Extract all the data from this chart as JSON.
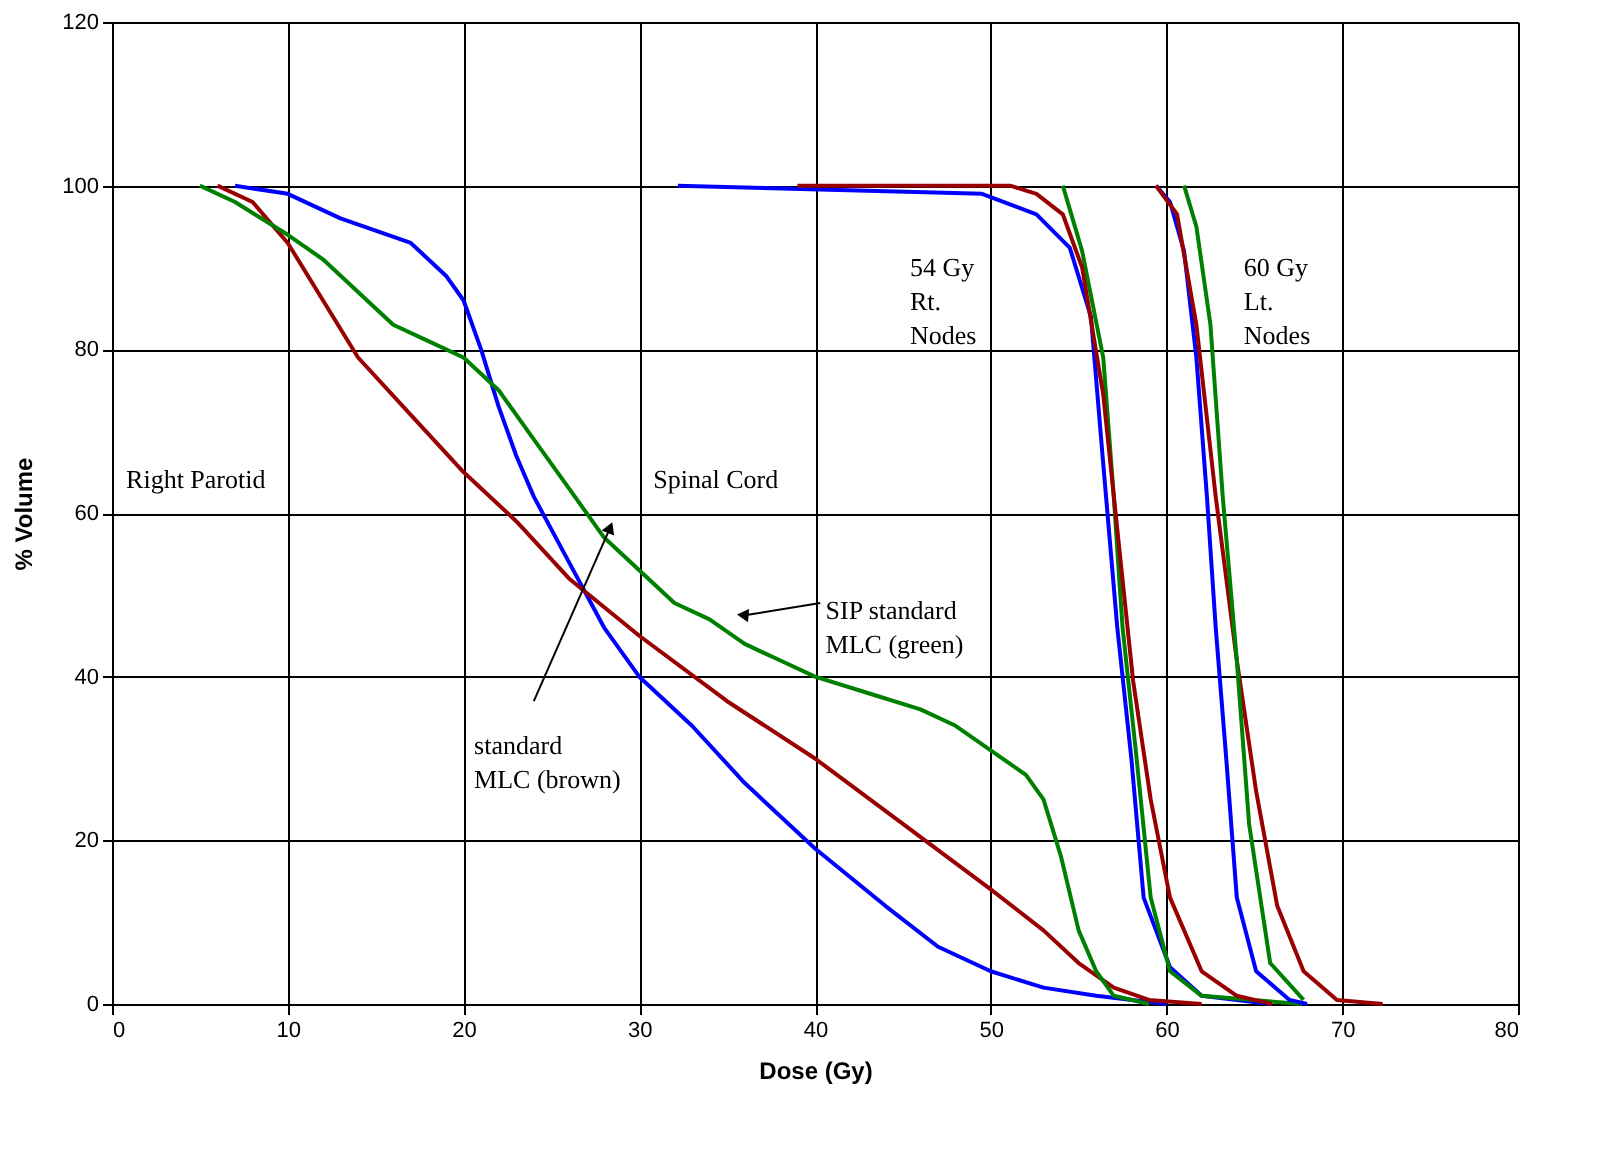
{
  "chart_data": {
    "type": "line",
    "xlabel": "Dose (Gy)",
    "ylabel": "% Volume",
    "xlim": [
      0,
      80
    ],
    "ylim": [
      0,
      120
    ],
    "xticks": [
      0,
      10,
      20,
      30,
      40,
      50,
      60,
      70,
      80
    ],
    "yticks": [
      0,
      20,
      40,
      60,
      80,
      100,
      120
    ],
    "grid": true,
    "marker": "none",
    "line_style": "solid",
    "annotations": [
      "Right Parotid",
      "Spinal Cord",
      "54 Gy Rt. Nodes",
      "60 Gy Lt. Nodes",
      "standard MLC (brown)",
      "SIP standard MLC (green)"
    ],
    "series": [
      {
        "color": "#0000ff",
        "x": [
          7,
          10,
          13,
          17,
          19,
          20,
          21,
          22,
          23,
          24,
          26,
          28,
          30,
          33,
          36,
          40,
          44,
          47,
          50,
          53,
          56,
          60
        ],
        "values": [
          100,
          99,
          96,
          93,
          89,
          86,
          80,
          73,
          67,
          62,
          54,
          46,
          40,
          34,
          27,
          19,
          12,
          7,
          4,
          2,
          1,
          0
        ]
      },
      {
        "color": "#990000",
        "x": [
          6,
          8,
          10,
          12,
          14,
          17,
          20,
          23,
          26,
          30,
          35,
          40,
          45,
          50,
          53,
          55,
          57,
          59,
          62
        ],
        "values": [
          100,
          98,
          93,
          86,
          79,
          72,
          65,
          59,
          52,
          45,
          37,
          30,
          22,
          14,
          9,
          5,
          2,
          0.5,
          0
        ]
      },
      {
        "color": "#008000",
        "x": [
          5,
          7,
          10,
          12,
          14,
          16,
          18,
          20,
          22,
          24,
          26,
          28,
          30,
          32,
          34,
          36,
          38,
          40,
          43,
          46,
          48,
          50,
          52,
          53,
          54,
          55,
          56,
          57,
          59
        ],
        "values": [
          100,
          98,
          94,
          91,
          87,
          83,
          81,
          79,
          75,
          69,
          63,
          57,
          53,
          49,
          47,
          44,
          42,
          40,
          38,
          36,
          34,
          31,
          28,
          25,
          18,
          9,
          4,
          1,
          0
        ]
      },
      {
        "color": "#0000ff",
        "x": [
          32.2,
          49.5,
          52.6,
          54.5,
          55.7,
          56.4,
          57.2,
          58,
          58.7,
          60.2,
          62,
          65.9
        ],
        "values": [
          100,
          99,
          96.5,
          92.4,
          84,
          66,
          46,
          30,
          13,
          4.5,
          1,
          0
        ]
      },
      {
        "color": "#008000",
        "x": [
          54.1,
          55.2,
          56.4,
          57,
          57.5,
          58.3,
          59.1,
          60.2,
          62,
          67.7
        ],
        "values": [
          100,
          92,
          79,
          62,
          46,
          30,
          13,
          4,
          1,
          0
        ]
      },
      {
        "color": "#990000",
        "x": [
          39,
          51.1,
          52.6,
          54.1,
          55.2,
          56.4,
          57.2,
          58.1,
          59.1,
          60.2,
          62,
          64,
          66
        ],
        "values": [
          100,
          100,
          99,
          96.5,
          90,
          74.5,
          58,
          39.5,
          25,
          13,
          4,
          1,
          0
        ]
      },
      {
        "color": "#0000ff",
        "x": [
          59.4,
          60.2,
          61,
          61.7,
          62.3,
          62.8,
          63.4,
          64,
          65.1,
          67,
          68
        ],
        "values": [
          100,
          98,
          92,
          79,
          62,
          46,
          30,
          13,
          4,
          0.5,
          0
        ]
      },
      {
        "color": "#990000",
        "x": [
          59.4,
          60.6,
          61.7,
          62.8,
          64,
          65.1,
          66.3,
          67.8,
          69.7,
          72.3
        ],
        "values": [
          100,
          96.5,
          83,
          62,
          42,
          26,
          12,
          4,
          0.5,
          0
        ]
      },
      {
        "color": "#008000",
        "x": [
          61,
          61.7,
          62.5,
          63.2,
          64,
          64.7,
          65.9,
          67.8
        ],
        "values": [
          100,
          95,
          83,
          62,
          42,
          22,
          5,
          0.5
        ]
      }
    ]
  }
}
